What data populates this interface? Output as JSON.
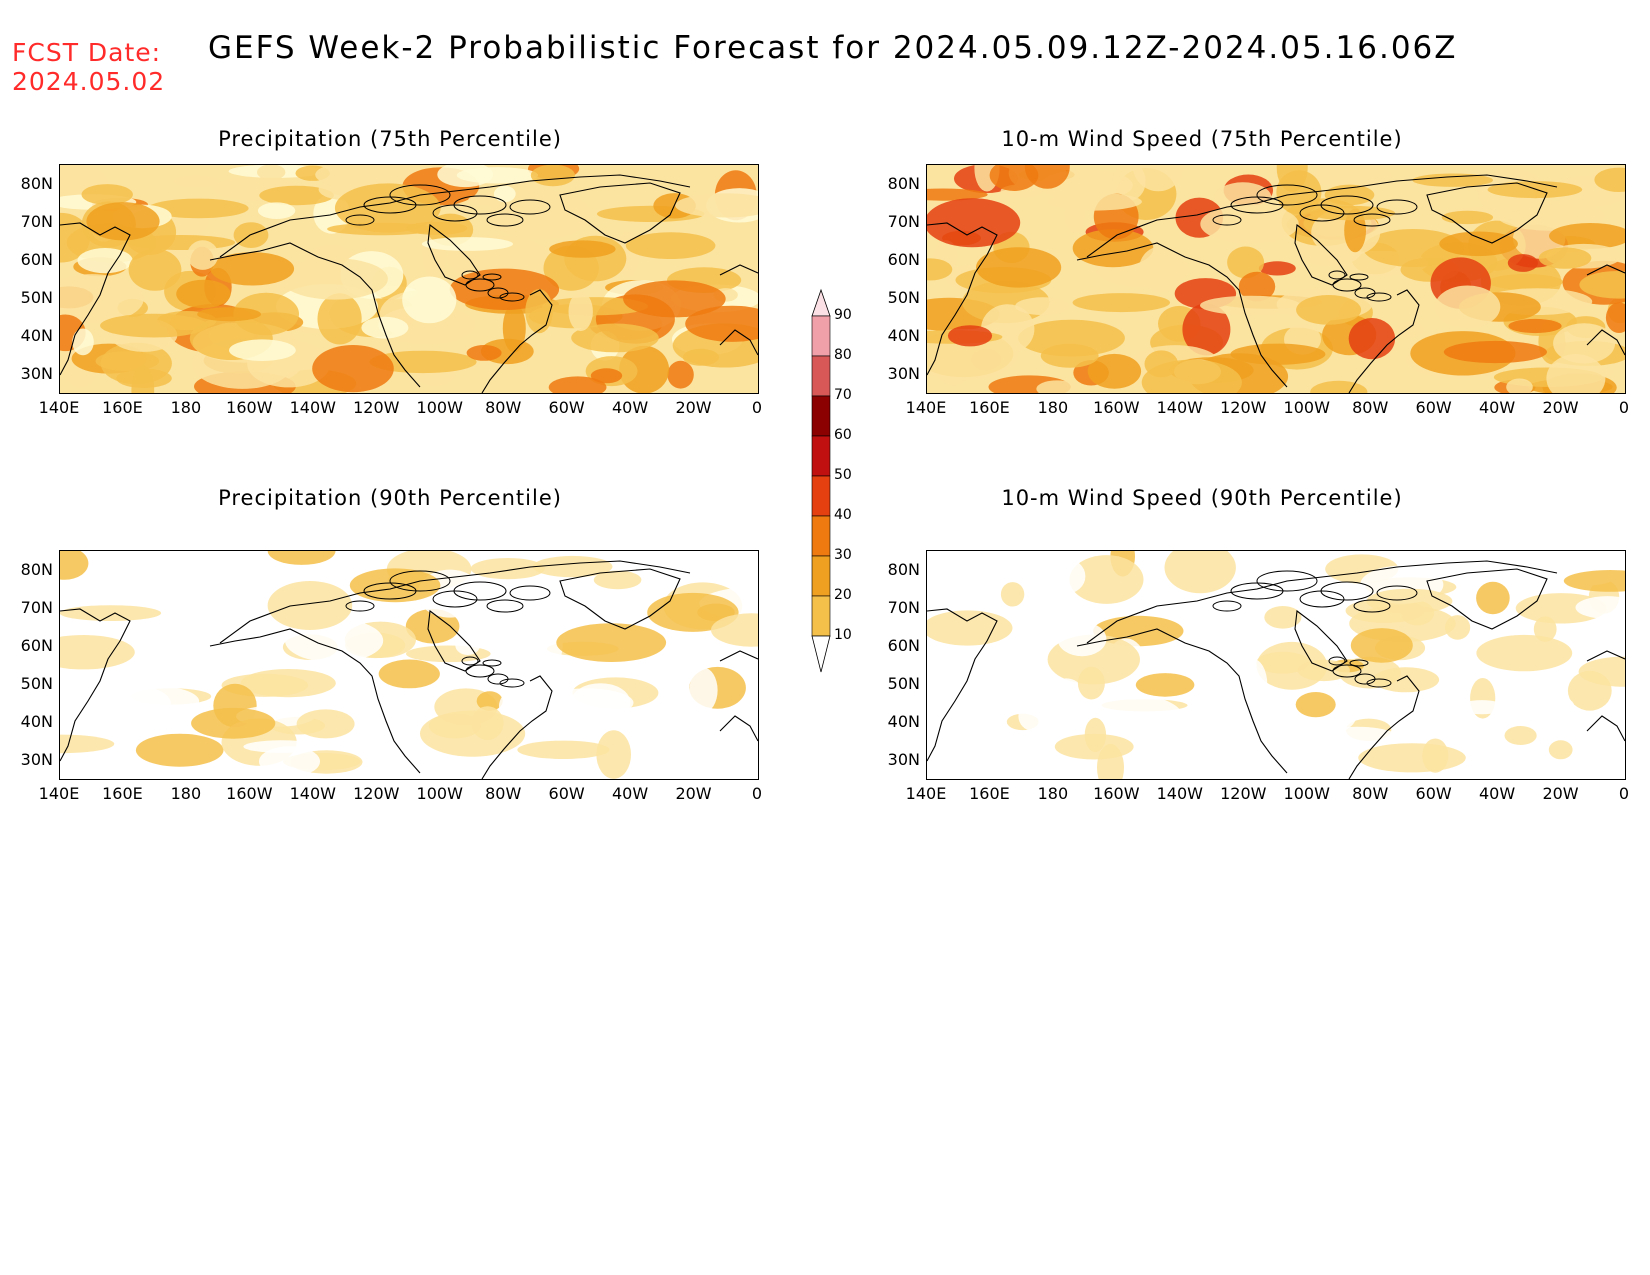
{
  "header": {
    "fcst_label": "FCST Date:",
    "fcst_date": "2024.05.02",
    "title": "GEFS Week-2 Probabilistic Forecast for 2024.05.09.12Z-2024.05.16.06Z"
  },
  "panels": [
    {
      "title": "Precipitation (75th Percentile)",
      "intensity": "moderate"
    },
    {
      "title": "10-m Wind Speed (75th Percentile)",
      "intensity": "high"
    },
    {
      "title": "Precipitation (90th Percentile)",
      "intensity": "low"
    },
    {
      "title": "10-m Wind Speed (90th Percentile)",
      "intensity": "low"
    }
  ],
  "axes": {
    "lat_labels": [
      "80N",
      "70N",
      "60N",
      "50N",
      "40N",
      "30N"
    ],
    "lon_labels": [
      "140E",
      "160E",
      "180",
      "160W",
      "140W",
      "120W",
      "100W",
      "80W",
      "60W",
      "40W",
      "20W",
      "0"
    ]
  },
  "colorbar": {
    "levels": [
      "90",
      "80",
      "70",
      "60",
      "50",
      "40",
      "30",
      "20",
      "10"
    ],
    "colors": [
      "#ffffff",
      "#fbe3a0",
      "#f5c04a",
      "#f0a020",
      "#ee7a10",
      "#e44010",
      "#c01010",
      "#8b0000",
      "#d85858",
      "#f0a0a8"
    ]
  }
}
